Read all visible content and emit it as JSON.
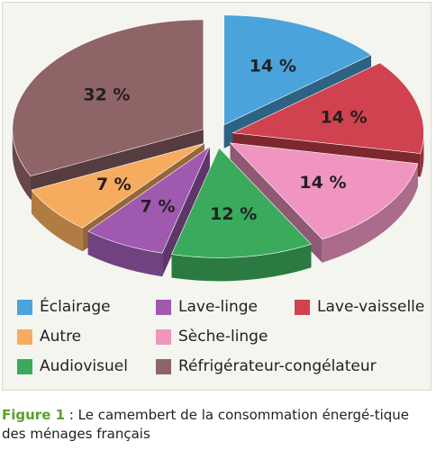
{
  "chart_data": {
    "type": "pie",
    "title": "",
    "slices": [
      {
        "name": "Éclairage",
        "value": 14,
        "label": "14 %",
        "color": "#4ba3dc"
      },
      {
        "name": "Lave-vaisselle",
        "value": 14,
        "label": "14 %",
        "color": "#d0424f"
      },
      {
        "name": "Sèche-linge",
        "value": 14,
        "label": "14 %",
        "color": "#ef95c0"
      },
      {
        "name": "Audiovisuel",
        "value": 12,
        "label": "12 %",
        "color": "#3aaa5c"
      },
      {
        "name": "Lave-linge",
        "value": 7,
        "label": "7 %",
        "color": "#9f5ab0"
      },
      {
        "name": "Autre",
        "value": 7,
        "label": "7 %",
        "color": "#f6ac5e"
      },
      {
        "name": "Réfrigérateur-congélateur",
        "value": 32,
        "label": "32 %",
        "color": "#8f6467"
      }
    ],
    "exploded": true,
    "three_d": true,
    "legend_position": "bottom"
  },
  "legend": {
    "items": [
      {
        "label": "Éclairage",
        "color": "#4ba3dc"
      },
      {
        "label": "Lave-linge",
        "color": "#9f5ab0"
      },
      {
        "label": "Lave-vaisselle",
        "color": "#d0424f"
      },
      {
        "label": "Autre",
        "color": "#f6ac5e"
      },
      {
        "label": "Sèche-linge",
        "color": "#ef95c0"
      },
      {
        "label": "Audiovisuel",
        "color": "#3aaa5c"
      },
      {
        "label": "Réfrigérateur-congélateur",
        "color": "#8f6467"
      }
    ]
  },
  "caption": {
    "figure_label": "Figure 1",
    "text": " : Le camembert de la consommation énergé-tique des ménages français"
  }
}
